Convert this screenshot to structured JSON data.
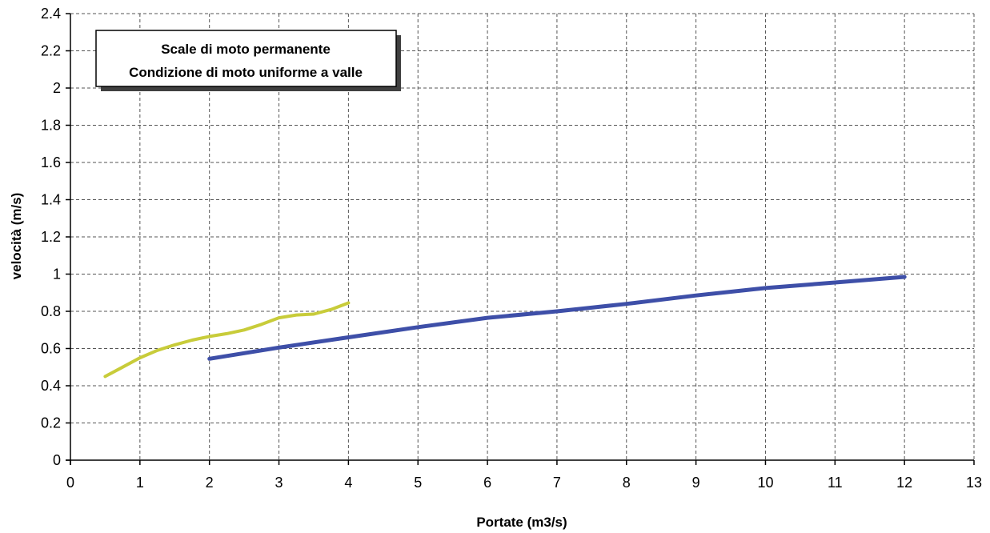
{
  "chart_data": {
    "type": "line",
    "title": "",
    "xlabel": "Portate (m3/s)",
    "ylabel": "velocità (m/s)",
    "xlim": [
      0,
      13
    ],
    "ylim": [
      0,
      2.4
    ],
    "x_ticks": [
      0,
      1,
      2,
      3,
      4,
      5,
      6,
      7,
      8,
      9,
      10,
      11,
      12,
      13
    ],
    "y_ticks": [
      0,
      0.2,
      0.4,
      0.6,
      0.8,
      1,
      1.2,
      1.4,
      1.6,
      1.8,
      2,
      2.2,
      2.4
    ],
    "grid": true,
    "annotation": {
      "lines": [
        "Scale di moto permanente",
        "Condizione di moto uniforme a valle"
      ],
      "placement": "top-left"
    },
    "series": [
      {
        "color": "#c8cc3a",
        "x": [
          0.5,
          0.75,
          1.0,
          1.25,
          1.5,
          1.75,
          2.0,
          2.25,
          2.5,
          2.75,
          3.0,
          3.25,
          3.5,
          3.75,
          4.0
        ],
        "y": [
          0.45,
          0.5,
          0.55,
          0.59,
          0.62,
          0.645,
          0.665,
          0.68,
          0.7,
          0.73,
          0.765,
          0.78,
          0.785,
          0.81,
          0.845
        ]
      },
      {
        "color": "#3e4fa8",
        "x": [
          2,
          3,
          4,
          5,
          6,
          7,
          8,
          9,
          10,
          11,
          12
        ],
        "y": [
          0.545,
          0.605,
          0.66,
          0.715,
          0.765,
          0.8,
          0.84,
          0.885,
          0.925,
          0.955,
          0.985
        ]
      }
    ]
  }
}
